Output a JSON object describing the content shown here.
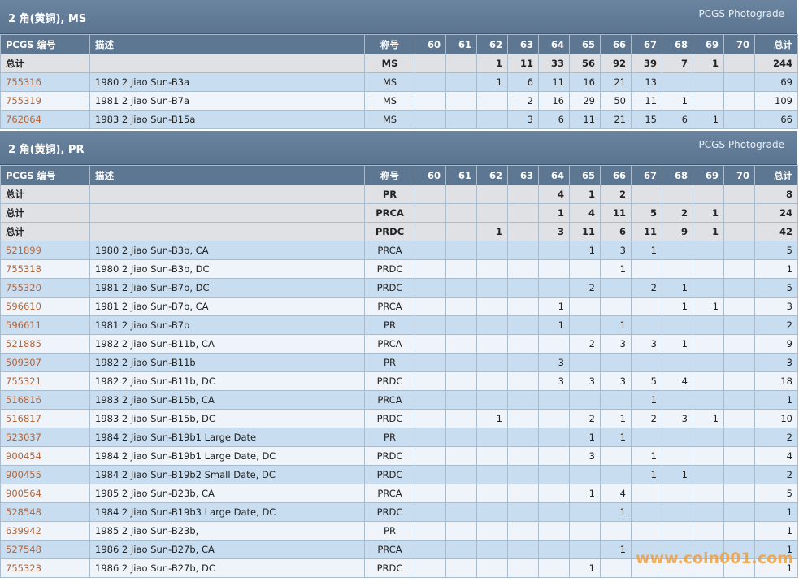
{
  "sections": [
    {
      "title": "2 角(黄铜), MS",
      "link": "PCGS Photograde",
      "columns": [
        "PCGS 编号",
        "描述",
        "称号",
        60,
        61,
        62,
        63,
        64,
        65,
        66,
        67,
        68,
        69,
        70,
        "总计"
      ],
      "rows": [
        [
          "总计",
          null,
          "MS",
          null,
          null,
          1,
          11,
          33,
          56,
          92,
          39,
          7,
          1,
          null,
          244
        ],
        [
          "755316",
          "1980 2 Jiao Sun-B3a",
          "MS",
          null,
          null,
          1,
          6,
          11,
          16,
          21,
          13,
          null,
          null,
          null,
          69
        ],
        [
          "755319",
          "1981 2 Jiao Sun-B7a",
          "MS",
          null,
          null,
          null,
          2,
          16,
          29,
          50,
          11,
          1,
          null,
          null,
          109
        ],
        [
          "762064",
          "1983 2 Jiao Sun-B15a",
          "MS",
          null,
          null,
          null,
          3,
          6,
          11,
          21,
          15,
          6,
          1,
          null,
          66
        ]
      ]
    },
    {
      "title": "2 角(黄铜), PR",
      "link": "PCGS Photograde",
      "columns": [
        "PCGS 编号",
        "描述",
        "称号",
        60,
        61,
        62,
        63,
        64,
        65,
        66,
        67,
        68,
        69,
        70,
        "总计"
      ],
      "rows": [
        [
          "总计",
          null,
          "PR",
          null,
          null,
          null,
          null,
          4,
          1,
          2,
          null,
          null,
          null,
          null,
          8
        ],
        [
          "总计",
          null,
          "PRCA",
          null,
          null,
          null,
          null,
          1,
          4,
          11,
          5,
          2,
          1,
          null,
          24
        ],
        [
          "总计",
          null,
          "PRDC",
          null,
          null,
          1,
          null,
          3,
          11,
          6,
          11,
          9,
          1,
          null,
          42
        ],
        [
          "521899",
          "1980 2 Jiao Sun-B3b, CA",
          "PRCA",
          null,
          null,
          null,
          null,
          null,
          1,
          3,
          1,
          null,
          null,
          null,
          5
        ],
        [
          "755318",
          "1980 2 Jiao Sun-B3b, DC",
          "PRDC",
          null,
          null,
          null,
          null,
          null,
          null,
          1,
          null,
          null,
          null,
          null,
          1
        ],
        [
          "755320",
          "1981 2 Jiao Sun-B7b, DC",
          "PRDC",
          null,
          null,
          null,
          null,
          null,
          2,
          null,
          2,
          1,
          null,
          null,
          5
        ],
        [
          "596610",
          "1981 2 Jiao Sun-B7b, CA",
          "PRCA",
          null,
          null,
          null,
          null,
          1,
          null,
          null,
          null,
          1,
          1,
          null,
          3
        ],
        [
          "596611",
          "1981 2 Jiao Sun-B7b",
          "PR",
          null,
          null,
          null,
          null,
          1,
          null,
          1,
          null,
          null,
          null,
          null,
          2
        ],
        [
          "521885",
          "1982 2 Jiao Sun-B11b, CA",
          "PRCA",
          null,
          null,
          null,
          null,
          null,
          2,
          3,
          3,
          1,
          null,
          null,
          9
        ],
        [
          "509307",
          "1982 2 Jiao Sun-B11b",
          "PR",
          null,
          null,
          null,
          null,
          3,
          null,
          null,
          null,
          null,
          null,
          null,
          3
        ],
        [
          "755321",
          "1982 2 Jiao Sun-B11b, DC",
          "PRDC",
          null,
          null,
          null,
          null,
          3,
          3,
          3,
          5,
          4,
          null,
          null,
          18
        ],
        [
          "516816",
          "1983 2 Jiao Sun-B15b, CA",
          "PRCA",
          null,
          null,
          null,
          null,
          null,
          null,
          null,
          1,
          null,
          null,
          null,
          1
        ],
        [
          "516817",
          "1983 2 Jiao Sun-B15b, DC",
          "PRDC",
          null,
          null,
          1,
          null,
          null,
          2,
          1,
          2,
          3,
          1,
          null,
          10
        ],
        [
          "523037",
          "1984 2 Jiao Sun-B19b1 Large Date",
          "PR",
          null,
          null,
          null,
          null,
          null,
          1,
          1,
          null,
          null,
          null,
          null,
          2
        ],
        [
          "900454",
          "1984 2 Jiao Sun-B19b1 Large Date, DC",
          "PRDC",
          null,
          null,
          null,
          null,
          null,
          3,
          null,
          1,
          null,
          null,
          null,
          4
        ],
        [
          "900455",
          "1984 2 Jiao Sun-B19b2 Small Date, DC",
          "PRDC",
          null,
          null,
          null,
          null,
          null,
          null,
          null,
          1,
          1,
          null,
          null,
          2
        ],
        [
          "900564",
          "1985 2 Jiao Sun-B23b, CA",
          "PRCA",
          null,
          null,
          null,
          null,
          null,
          1,
          4,
          null,
          null,
          null,
          null,
          5
        ],
        [
          "528548",
          "1984 2 Jiao Sun-B19b3 Large Date, DC",
          "PRDC",
          null,
          null,
          null,
          null,
          null,
          null,
          1,
          null,
          null,
          null,
          null,
          1
        ],
        [
          "639942",
          "1985 2 Jiao Sun-B23b,",
          "PR",
          null,
          null,
          null,
          null,
          null,
          null,
          null,
          null,
          null,
          null,
          null,
          1
        ],
        [
          "527548",
          "1986 2 Jiao Sun-B27b, CA",
          "PRCA",
          null,
          null,
          null,
          null,
          null,
          null,
          1,
          null,
          null,
          null,
          null,
          1
        ],
        [
          "755323",
          "1986 2 Jiao Sun-B27b, DC",
          "PRDC",
          null,
          null,
          null,
          null,
          null,
          1,
          null,
          null,
          null,
          null,
          null,
          1
        ]
      ]
    }
  ],
  "watermark": "www.coin001.com"
}
